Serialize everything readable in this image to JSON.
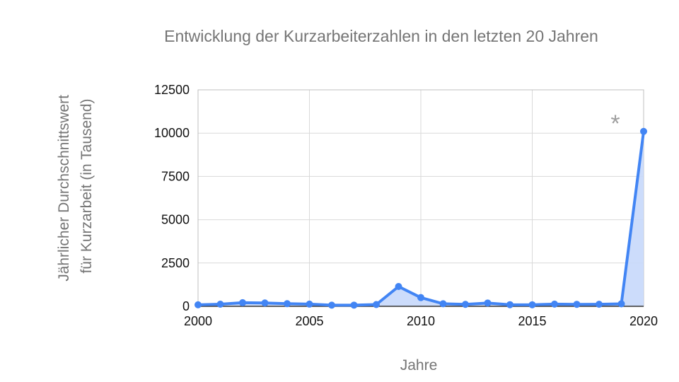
{
  "chart_data": {
    "type": "area",
    "title": "Entwicklung der Kurzarbeiterzahlen in den letzten 20 Jahren",
    "xlabel": "Jahre",
    "ylabel_lines": [
      "Jährlicher Durchschnittswert",
      "für Kurzarbeit (in Tausend)"
    ],
    "xlim": [
      2000,
      2020
    ],
    "ylim": [
      0,
      12500
    ],
    "x_ticks": [
      "2000",
      "2005",
      "2010",
      "2015",
      "2020"
    ],
    "y_ticks": [
      "0",
      "2500",
      "5000",
      "7500",
      "10000",
      "12500"
    ],
    "grid": true,
    "annotation": "*",
    "series": [
      {
        "x": [
          2000,
          2001,
          2002,
          2003,
          2004,
          2005,
          2006,
          2007,
          2008,
          2009,
          2010,
          2011,
          2012,
          2013,
          2014,
          2015,
          2016,
          2017,
          2018,
          2019,
          2020
        ],
        "values": [
          86,
          123,
          207,
          195,
          151,
          126,
          67,
          68,
          102,
          1144,
          503,
          148,
          112,
          191,
          94,
          88,
          128,
          114,
          118,
          145,
          10100
        ],
        "line_color": "#4285f4",
        "fill_color": "#c6d8fb"
      }
    ]
  }
}
